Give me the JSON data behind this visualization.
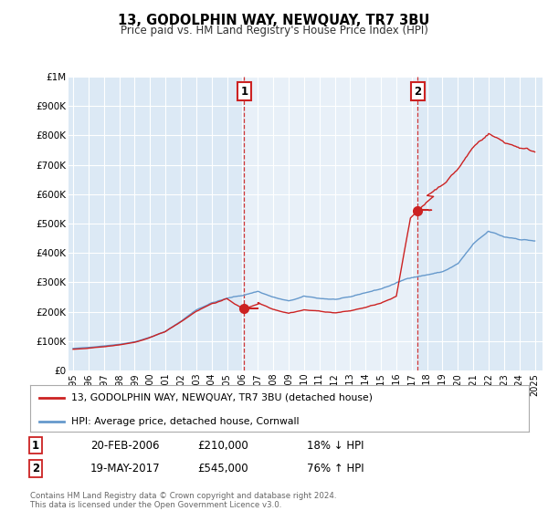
{
  "title": "13, GODOLPHIN WAY, NEWQUAY, TR7 3BU",
  "subtitle": "Price paid vs. HM Land Registry's House Price Index (HPI)",
  "ylim": [
    0,
    1000000
  ],
  "yticks": [
    0,
    100000,
    200000,
    300000,
    400000,
    500000,
    600000,
    700000,
    800000,
    900000,
    1000000
  ],
  "ytick_labels": [
    "£0",
    "£100K",
    "£200K",
    "£300K",
    "£400K",
    "£500K",
    "£600K",
    "£700K",
    "£800K",
    "£900K",
    "£1M"
  ],
  "background_color": "#ffffff",
  "plot_bg_color": "#dce9f5",
  "grid_color": "#ffffff",
  "hpi_color": "#6699cc",
  "price_color": "#cc2222",
  "shade_color": "#e8f0f8",
  "marker1_x": 2006.12,
  "marker1_y": 210000,
  "marker2_x": 2017.38,
  "marker2_y": 545000,
  "marker1_label": "1",
  "marker2_label": "2",
  "marker1_date": "20-FEB-2006",
  "marker1_price": "£210,000",
  "marker1_hpi": "18% ↓ HPI",
  "marker2_date": "19-MAY-2017",
  "marker2_price": "£545,000",
  "marker2_hpi": "76% ↑ HPI",
  "legend1_label": "13, GODOLPHIN WAY, NEWQUAY, TR7 3BU (detached house)",
  "legend2_label": "HPI: Average price, detached house, Cornwall",
  "footer": "Contains HM Land Registry data © Crown copyright and database right 2024.\nThis data is licensed under the Open Government Licence v3.0.",
  "xlim": [
    1994.7,
    2025.5
  ],
  "xticks": [
    1995,
    1996,
    1997,
    1998,
    1999,
    2000,
    2001,
    2002,
    2003,
    2004,
    2005,
    2006,
    2007,
    2008,
    2009,
    2010,
    2011,
    2012,
    2013,
    2014,
    2015,
    2016,
    2017,
    2018,
    2019,
    2020,
    2021,
    2022,
    2023,
    2024,
    2025
  ]
}
